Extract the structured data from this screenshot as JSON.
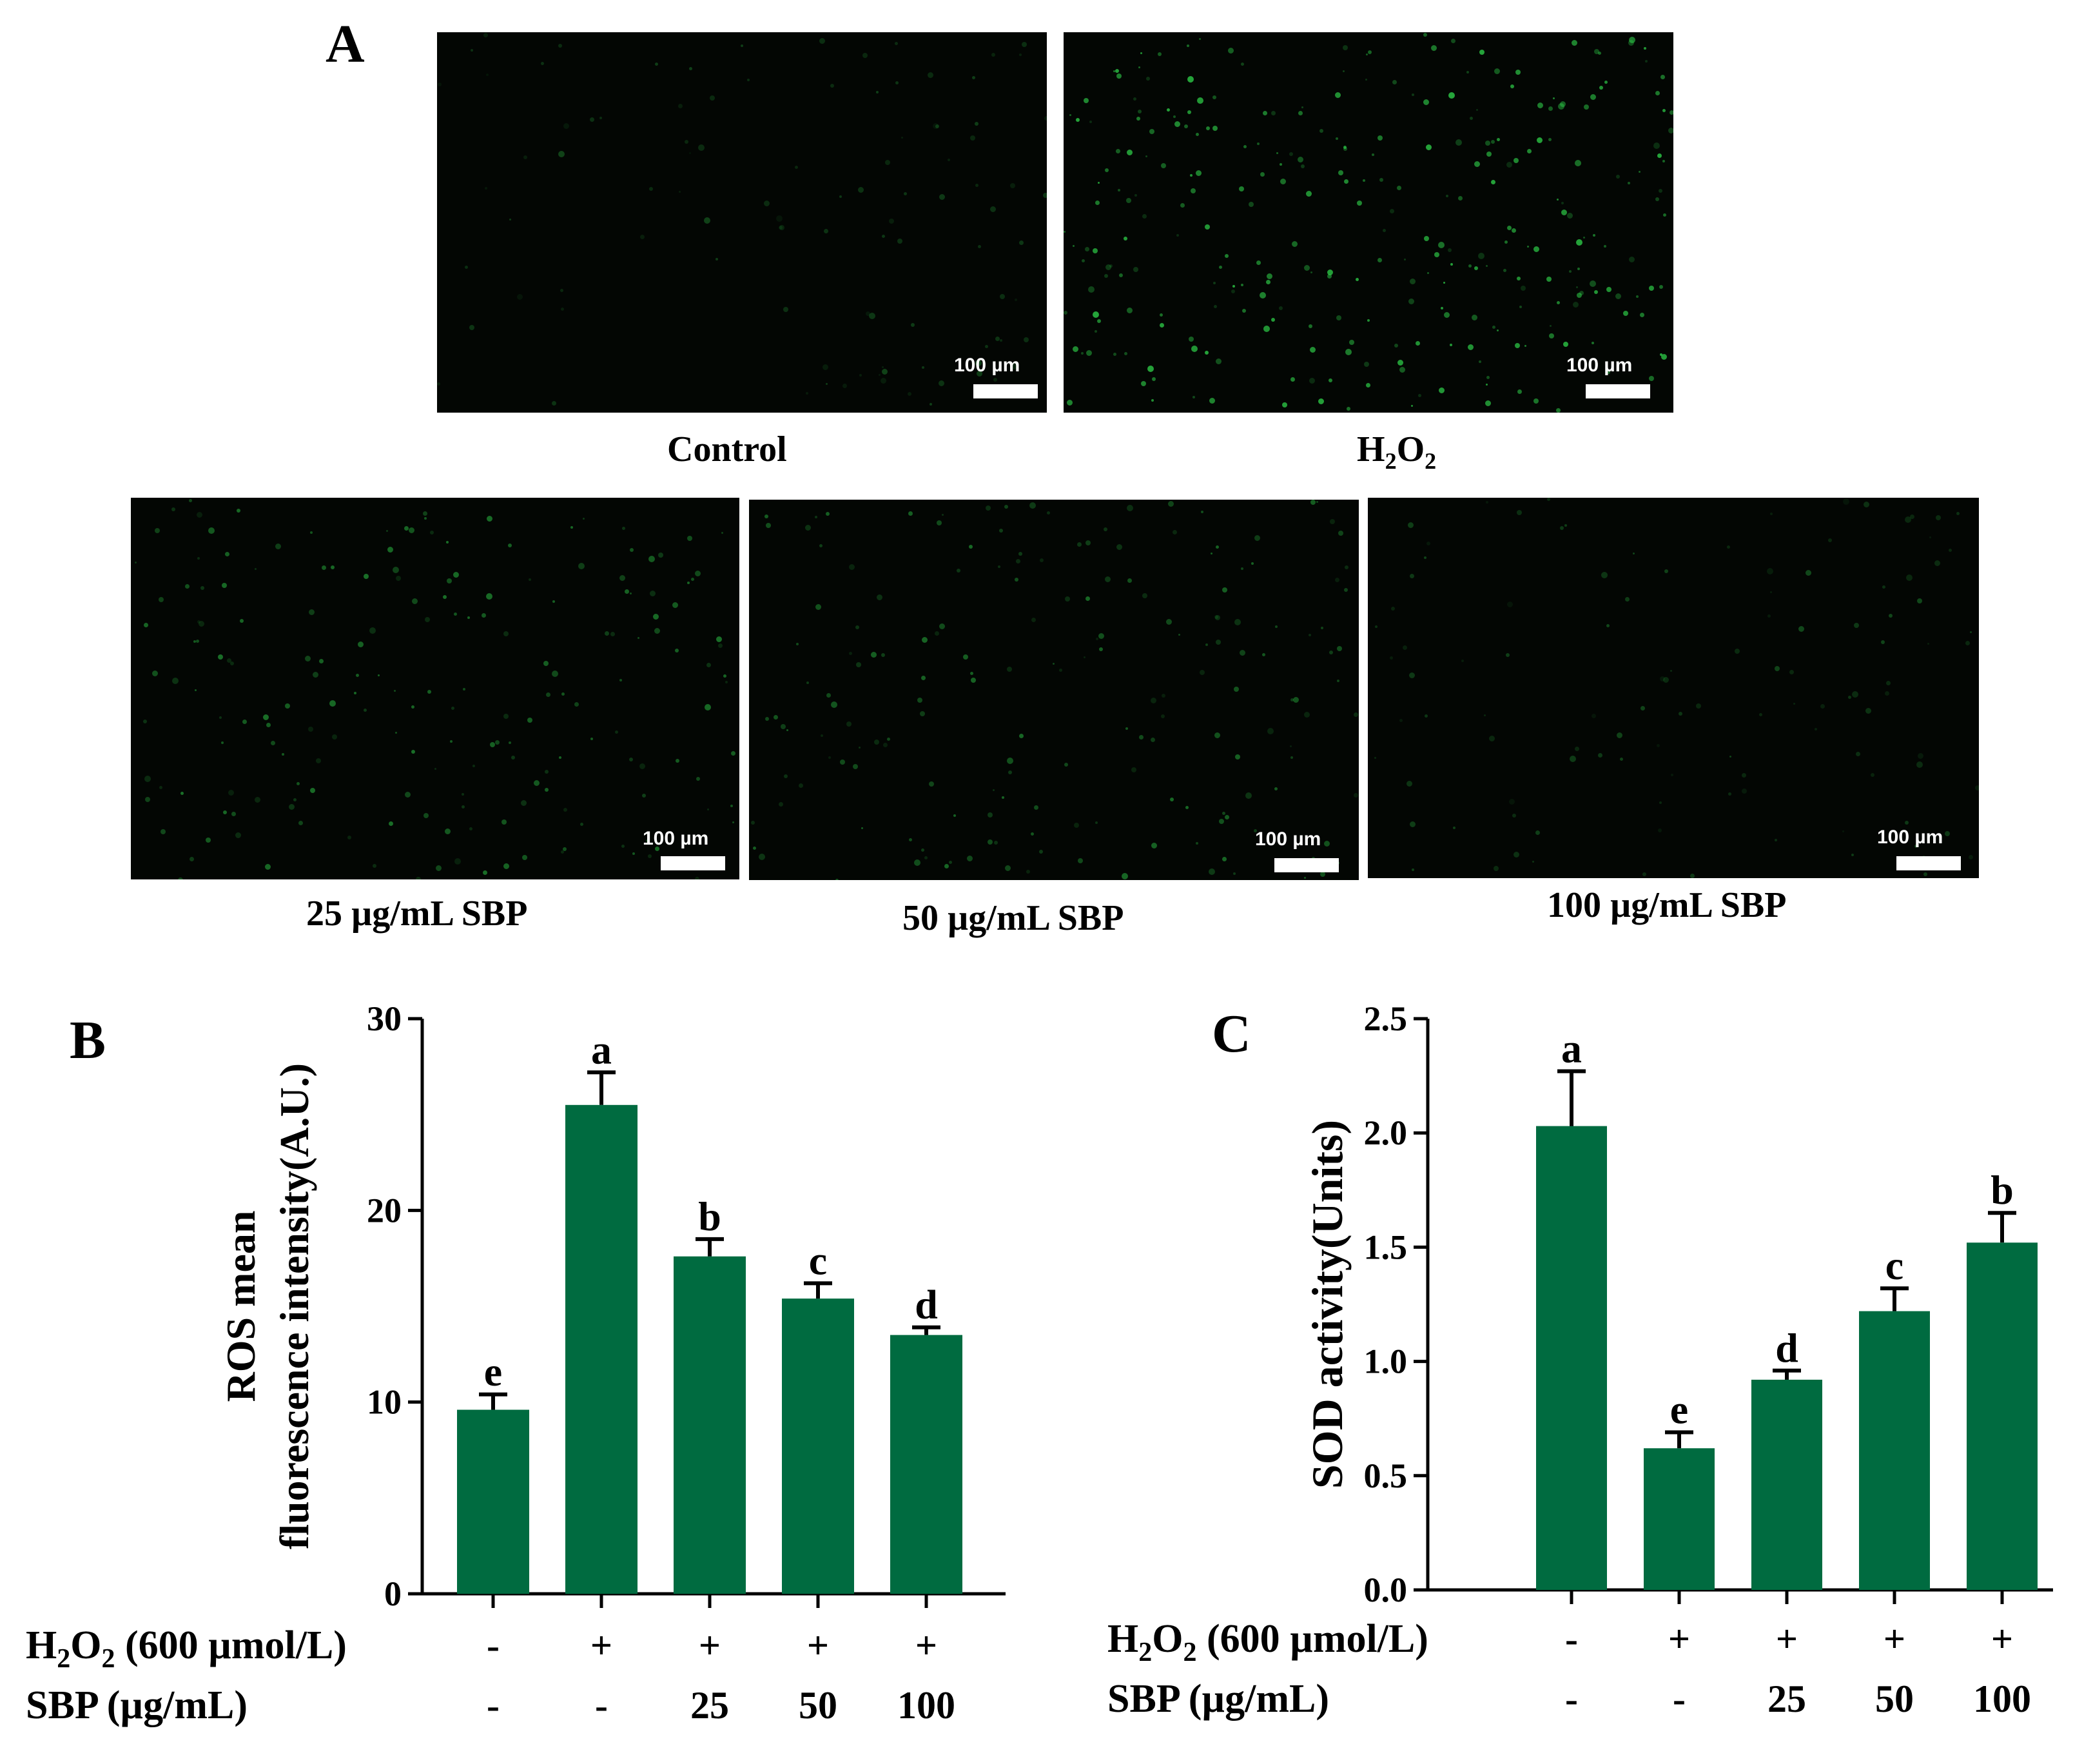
{
  "panels": {
    "a": "A",
    "b": "B",
    "c": "C"
  },
  "images": [
    {
      "caption": "Control",
      "scale_label": "100 µm",
      "glow": 0.15
    },
    {
      "caption_main": "H",
      "caption_sub1": "2",
      "caption_mid": "O",
      "caption_sub2": "2",
      "scale_label": "100 µm",
      "glow": 0.9
    },
    {
      "caption": "25 µg/mL  SBP",
      "scale_label": "100 µm",
      "glow": 0.5
    },
    {
      "caption": "50 µg/mL  SBP",
      "scale_label": "100 µm",
      "glow": 0.45
    },
    {
      "caption": "100 µg/mL  SBP",
      "scale_label": "100 µm",
      "glow": 0.2
    }
  ],
  "colors": {
    "bar": "#006b40",
    "axis": "#000000",
    "fluor": "#2fd14a"
  },
  "chart_data": [
    {
      "type": "bar",
      "panel": "B",
      "ylabel_line1": "ROS mean",
      "ylabel_line2": "fluorescence intensity(A.U.)",
      "ylim": [
        0,
        30
      ],
      "yticks": [
        "0",
        "10",
        "20",
        "30"
      ],
      "values": [
        9.6,
        25.5,
        17.6,
        15.4,
        13.5
      ],
      "errors": [
        0.8,
        1.7,
        0.9,
        0.8,
        0.4
      ],
      "letters": [
        "e",
        "a",
        "b",
        "c",
        "d"
      ],
      "row1_label": "H2O2 (600 µmol/L)",
      "row1": [
        "-",
        "+",
        "+",
        "+",
        "+"
      ],
      "row2_label": "SBP  (µg/mL)",
      "row2": [
        "-",
        "-",
        "25",
        "50",
        "100"
      ]
    },
    {
      "type": "bar",
      "panel": "C",
      "ylabel": "SOD activity(Units)",
      "ylim": [
        0,
        2.5
      ],
      "yticks": [
        "0.0",
        "0.5",
        "1.0",
        "1.5",
        "2.0",
        "2.5"
      ],
      "values": [
        2.03,
        0.62,
        0.92,
        1.22,
        1.52
      ],
      "errors": [
        0.24,
        0.07,
        0.04,
        0.1,
        0.13
      ],
      "letters": [
        "a",
        "e",
        "d",
        "c",
        "b"
      ],
      "row1_label": "H2O2 (600 µmol/L)",
      "row1": [
        "-",
        "+",
        "+",
        "+",
        "+"
      ],
      "row2_label": "SBP  (µg/mL)",
      "row2": [
        "-",
        "-",
        "25",
        "50",
        "100"
      ]
    }
  ]
}
